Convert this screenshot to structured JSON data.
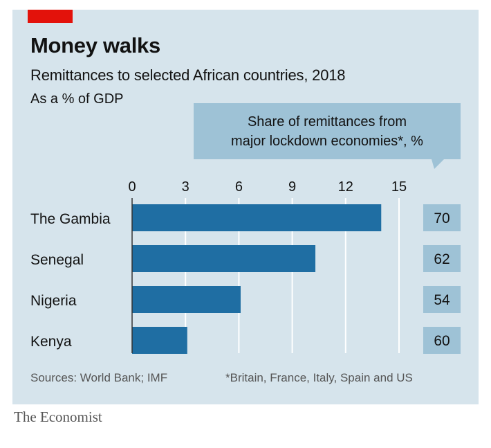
{
  "colors": {
    "background": "#d6e4ec",
    "bar": "#1f6ea3",
    "share_box": "#9ec2d6",
    "callout": "#9ec2d6",
    "accent_red": "#e3120b",
    "grid": "#ffffff",
    "axis": "#333333"
  },
  "header": {
    "title": "Money walks",
    "subtitle": "Remittances to selected African countries, 2018",
    "unit": "As a % of GDP"
  },
  "callout": {
    "line1": "Share of remittances from",
    "line2": "major lockdown economies*, %"
  },
  "footer": {
    "sources": "Sources: World Bank; IMF",
    "footnote": "*Britain, France, Italy, Spain and US"
  },
  "brand": "The Economist",
  "chart_data": {
    "type": "bar",
    "orientation": "horizontal",
    "title": "Money walks",
    "subtitle": "Remittances to selected African countries, 2018",
    "xlabel": "As a % of GDP",
    "ylabel": "",
    "xlim": [
      0,
      15
    ],
    "xticks": [
      0,
      3,
      6,
      9,
      12,
      15
    ],
    "grid": true,
    "categories": [
      "The Gambia",
      "Senegal",
      "Nigeria",
      "Kenya"
    ],
    "values": [
      14.0,
      10.3,
      6.1,
      3.1
    ],
    "secondary_series": {
      "name": "Share of remittances from major lockdown economies*, %",
      "values": [
        70,
        62,
        54,
        60
      ]
    }
  }
}
